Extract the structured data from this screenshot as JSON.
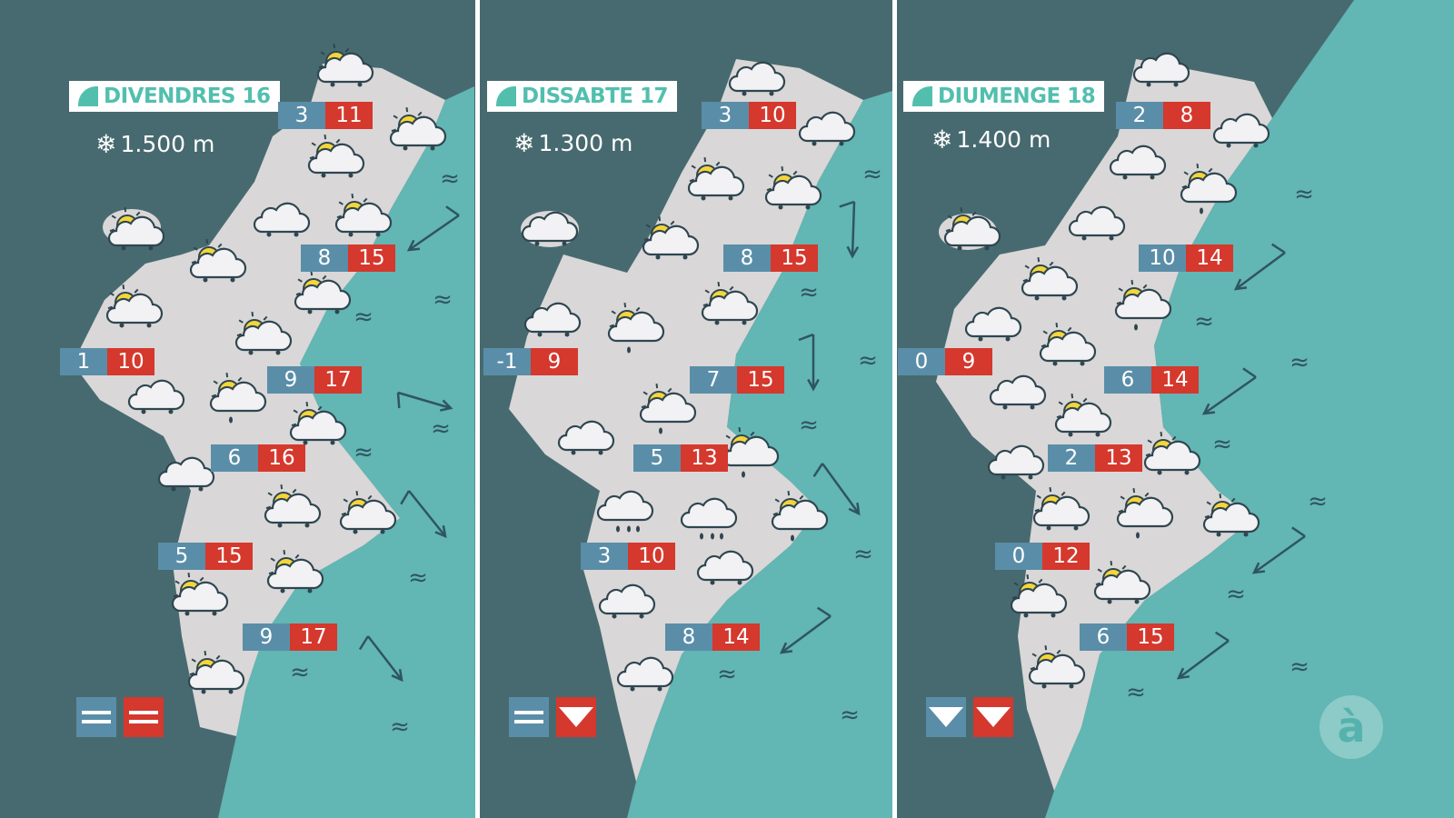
{
  "colors": {
    "inland": "#476a70",
    "sea": "#62b6b4",
    "land": "#d9d7d7",
    "min_temp": "#5a8ea8",
    "max_temp": "#d5382d",
    "title": "#52bfae"
  },
  "logo": {
    "letter": "à"
  },
  "panels": [
    {
      "day": "DIVENDRES 16",
      "snow_level": "1.500 m",
      "temps": [
        {
          "min": "3",
          "max": "11"
        },
        {
          "min": "8",
          "max": "15"
        },
        {
          "min": "1",
          "max": "10"
        },
        {
          "min": "9",
          "max": "17"
        },
        {
          "min": "6",
          "max": "16"
        },
        {
          "min": "5",
          "max": "15"
        },
        {
          "min": "9",
          "max": "17"
        }
      ],
      "trend": {
        "min": "equal",
        "max": "equal"
      },
      "icons": [
        "sun-cloud",
        "sun-cloud",
        "sun-cloud",
        "cloud",
        "sun-cloud",
        "sun-cloud",
        "sun-cloud",
        "sun-cloud",
        "sun-cloud",
        "sun-cloud",
        "cloud",
        "sun-rain",
        "sun-cloud",
        "cloud",
        "sun-cloud",
        "sun-cloud",
        "sun-cloud",
        "sun-cloud",
        "sun-cloud"
      ]
    },
    {
      "day": "DISSABTE 17",
      "snow_level": "1.300 m",
      "temps": [
        {
          "min": "3",
          "max": "10"
        },
        {
          "min": "8",
          "max": "15"
        },
        {
          "min": "-1",
          "max": "9"
        },
        {
          "min": "7",
          "max": "15"
        },
        {
          "min": "5",
          "max": "13"
        },
        {
          "min": "3",
          "max": "10"
        },
        {
          "min": "8",
          "max": "14"
        }
      ],
      "trend": {
        "min": "equal",
        "max": "down"
      },
      "icons": [
        "cloud",
        "cloud",
        "sun-cloud",
        "sun-cloud",
        "cloud",
        "sun-cloud",
        "sun-cloud",
        "cloud",
        "sun-rain",
        "sun-rain",
        "cloud",
        "sun-rain",
        "rain",
        "rain",
        "sun-rain",
        "cloud",
        "cloud",
        "cloud"
      ]
    },
    {
      "day": "DIUMENGE 18",
      "snow_level": "1.400 m",
      "temps": [
        {
          "min": "2",
          "max": "8"
        },
        {
          "min": "10",
          "max": "14"
        },
        {
          "min": "0",
          "max": "9"
        },
        {
          "min": "6",
          "max": "14"
        },
        {
          "min": "2",
          "max": "13"
        },
        {
          "min": "0",
          "max": "12"
        },
        {
          "min": "6",
          "max": "15"
        }
      ],
      "trend": {
        "min": "down",
        "max": "down"
      },
      "icons": [
        "cloud",
        "cloud",
        "cloud",
        "sun-rain",
        "cloud",
        "sun-cloud",
        "sun-cloud",
        "sun-rain",
        "cloud",
        "sun-cloud",
        "cloud",
        "sun-cloud",
        "sun-cloud",
        "cloud",
        "sun-cloud",
        "sun-rain",
        "sun-cloud",
        "sun-cloud",
        "sun-cloud",
        "sun-cloud"
      ]
    }
  ]
}
